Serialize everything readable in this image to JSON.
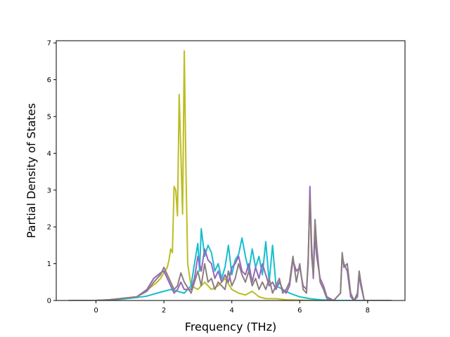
{
  "chart_data": {
    "type": "line",
    "title": "",
    "xlabel": "Frequency (THz)",
    "ylabel": "Partial Density of States",
    "xlim": [
      -1.17,
      9.1
    ],
    "ylim": [
      0,
      7.06
    ],
    "xticks": [
      0,
      2,
      4,
      6,
      8
    ],
    "yticks": [
      0,
      1,
      2,
      3,
      4,
      5,
      6,
      7
    ],
    "grid": false,
    "legend": "none",
    "series": [
      {
        "color": "#bcbd22",
        "points": [
          [
            -0.8,
            0
          ],
          [
            0,
            0
          ],
          [
            0.3,
            0.01
          ],
          [
            0.6,
            0.04
          ],
          [
            0.8,
            0.06
          ],
          [
            1.0,
            0.08
          ],
          [
            1.2,
            0.1
          ],
          [
            1.4,
            0.2
          ],
          [
            1.6,
            0.35
          ],
          [
            1.8,
            0.5
          ],
          [
            1.9,
            0.6
          ],
          [
            2.0,
            0.75
          ],
          [
            2.1,
            0.9
          ],
          [
            2.15,
            1.1
          ],
          [
            2.2,
            1.4
          ],
          [
            2.25,
            1.3
          ],
          [
            2.3,
            3.1
          ],
          [
            2.35,
            3.0
          ],
          [
            2.4,
            2.3
          ],
          [
            2.45,
            5.6
          ],
          [
            2.5,
            4.0
          ],
          [
            2.55,
            2.35
          ],
          [
            2.6,
            6.78
          ],
          [
            2.65,
            3.5
          ],
          [
            2.7,
            1.0
          ],
          [
            2.8,
            0.4
          ],
          [
            3.0,
            0.3
          ],
          [
            3.2,
            0.5
          ],
          [
            3.4,
            0.3
          ],
          [
            3.6,
            0.4
          ],
          [
            3.8,
            0.6
          ],
          [
            4.0,
            0.3
          ],
          [
            4.2,
            0.2
          ],
          [
            4.4,
            0.15
          ],
          [
            4.6,
            0.25
          ],
          [
            4.8,
            0.1
          ],
          [
            5.0,
            0.05
          ],
          [
            5.3,
            0.05
          ],
          [
            5.6,
            0.02
          ],
          [
            6.0,
            0.01
          ],
          [
            6.5,
            0
          ],
          [
            8.7,
            0
          ]
        ]
      },
      {
        "color": "#17becf",
        "points": [
          [
            -0.8,
            0
          ],
          [
            0,
            0
          ],
          [
            0.4,
            0.01
          ],
          [
            0.8,
            0.04
          ],
          [
            1.2,
            0.08
          ],
          [
            1.5,
            0.12
          ],
          [
            1.8,
            0.2
          ],
          [
            2.0,
            0.25
          ],
          [
            2.2,
            0.3
          ],
          [
            2.4,
            0.25
          ],
          [
            2.6,
            0.2
          ],
          [
            2.8,
            0.4
          ],
          [
            2.9,
            1.0
          ],
          [
            3.0,
            1.55
          ],
          [
            3.05,
            0.8
          ],
          [
            3.1,
            1.95
          ],
          [
            3.2,
            1.2
          ],
          [
            3.3,
            1.5
          ],
          [
            3.4,
            1.3
          ],
          [
            3.5,
            0.8
          ],
          [
            3.6,
            1.0
          ],
          [
            3.7,
            0.6
          ],
          [
            3.8,
            0.9
          ],
          [
            3.9,
            1.5
          ],
          [
            4.0,
            0.7
          ],
          [
            4.1,
            1.1
          ],
          [
            4.2,
            1.25
          ],
          [
            4.3,
            1.7
          ],
          [
            4.4,
            1.2
          ],
          [
            4.5,
            0.8
          ],
          [
            4.6,
            1.4
          ],
          [
            4.7,
            0.9
          ],
          [
            4.8,
            1.2
          ],
          [
            4.9,
            0.7
          ],
          [
            5.0,
            1.6
          ],
          [
            5.1,
            0.5
          ],
          [
            5.2,
            1.5
          ],
          [
            5.3,
            0.4
          ],
          [
            5.5,
            0.3
          ],
          [
            5.7,
            0.2
          ],
          [
            6.0,
            0.1
          ],
          [
            6.3,
            0.05
          ],
          [
            6.6,
            0.02
          ],
          [
            7.0,
            0
          ],
          [
            8.7,
            0
          ]
        ]
      },
      {
        "color": "#9467bd",
        "points": [
          [
            -0.8,
            0
          ],
          [
            0,
            0
          ],
          [
            0.4,
            0.02
          ],
          [
            0.8,
            0.06
          ],
          [
            1.2,
            0.1
          ],
          [
            1.5,
            0.3
          ],
          [
            1.7,
            0.6
          ],
          [
            1.9,
            0.75
          ],
          [
            2.0,
            0.8
          ],
          [
            2.1,
            0.6
          ],
          [
            2.2,
            0.4
          ],
          [
            2.3,
            0.2
          ],
          [
            2.4,
            0.3
          ],
          [
            2.5,
            0.5
          ],
          [
            2.6,
            0.3
          ],
          [
            2.8,
            0.3
          ],
          [
            2.9,
            0.6
          ],
          [
            3.0,
            1.2
          ],
          [
            3.1,
            0.8
          ],
          [
            3.2,
            1.4
          ],
          [
            3.3,
            1.1
          ],
          [
            3.4,
            1.0
          ],
          [
            3.5,
            0.6
          ],
          [
            3.6,
            0.8
          ],
          [
            3.7,
            0.5
          ],
          [
            3.8,
            0.7
          ],
          [
            3.9,
            0.5
          ],
          [
            4.0,
            0.9
          ],
          [
            4.1,
            1.0
          ],
          [
            4.2,
            1.2
          ],
          [
            4.3,
            0.8
          ],
          [
            4.4,
            0.7
          ],
          [
            4.5,
            1.0
          ],
          [
            4.6,
            0.5
          ],
          [
            4.7,
            0.9
          ],
          [
            4.8,
            0.6
          ],
          [
            4.9,
            1.0
          ],
          [
            5.0,
            0.7
          ],
          [
            5.1,
            0.4
          ],
          [
            5.2,
            0.5
          ],
          [
            5.3,
            0.3
          ],
          [
            5.4,
            0.5
          ],
          [
            5.5,
            0.3
          ],
          [
            5.6,
            0.2
          ],
          [
            5.7,
            0.4
          ],
          [
            5.8,
            1.1
          ],
          [
            5.9,
            0.8
          ],
          [
            6.0,
            0.9
          ],
          [
            6.1,
            0.4
          ],
          [
            6.2,
            0.3
          ],
          [
            6.25,
            1.0
          ],
          [
            6.3,
            3.1
          ],
          [
            6.35,
            1.5
          ],
          [
            6.4,
            0.6
          ],
          [
            6.45,
            1.8
          ],
          [
            6.5,
            1.2
          ],
          [
            6.6,
            0.6
          ],
          [
            6.7,
            0.4
          ],
          [
            6.8,
            0.1
          ],
          [
            7.0,
            0
          ],
          [
            7.2,
            0.2
          ],
          [
            7.25,
            1.2
          ],
          [
            7.3,
            1.0
          ],
          [
            7.4,
            0.8
          ],
          [
            7.5,
            0.1
          ],
          [
            7.6,
            0
          ],
          [
            7.7,
            0.1
          ],
          [
            7.75,
            0.7
          ],
          [
            7.8,
            0.4
          ],
          [
            7.9,
            0
          ],
          [
            8.7,
            0
          ]
        ]
      },
      {
        "color": "#8c7e7e",
        "points": [
          [
            -0.8,
            0
          ],
          [
            0,
            0
          ],
          [
            0.4,
            0.02
          ],
          [
            0.8,
            0.06
          ],
          [
            1.2,
            0.1
          ],
          [
            1.5,
            0.25
          ],
          [
            1.7,
            0.5
          ],
          [
            1.9,
            0.7
          ],
          [
            2.0,
            0.9
          ],
          [
            2.1,
            0.7
          ],
          [
            2.2,
            0.5
          ],
          [
            2.3,
            0.3
          ],
          [
            2.4,
            0.4
          ],
          [
            2.5,
            0.75
          ],
          [
            2.6,
            0.5
          ],
          [
            2.8,
            0.2
          ],
          [
            2.9,
            0.5
          ],
          [
            3.0,
            0.8
          ],
          [
            3.1,
            0.4
          ],
          [
            3.2,
            1.0
          ],
          [
            3.3,
            0.5
          ],
          [
            3.4,
            0.6
          ],
          [
            3.5,
            0.3
          ],
          [
            3.6,
            0.5
          ],
          [
            3.7,
            0.4
          ],
          [
            3.8,
            0.3
          ],
          [
            3.9,
            0.8
          ],
          [
            4.0,
            0.4
          ],
          [
            4.1,
            0.6
          ],
          [
            4.2,
            1.0
          ],
          [
            4.3,
            0.7
          ],
          [
            4.4,
            0.5
          ],
          [
            4.5,
            0.8
          ],
          [
            4.6,
            0.4
          ],
          [
            4.7,
            0.6
          ],
          [
            4.8,
            0.3
          ],
          [
            4.9,
            0.5
          ],
          [
            5.0,
            0.3
          ],
          [
            5.1,
            0.6
          ],
          [
            5.2,
            0.2
          ],
          [
            5.3,
            0.4
          ],
          [
            5.4,
            0.6
          ],
          [
            5.5,
            0.2
          ],
          [
            5.6,
            0.3
          ],
          [
            5.7,
            0.5
          ],
          [
            5.8,
            1.2
          ],
          [
            5.9,
            0.5
          ],
          [
            6.0,
            1.0
          ],
          [
            6.1,
            0.3
          ],
          [
            6.2,
            0.2
          ],
          [
            6.25,
            1.2
          ],
          [
            6.3,
            2.8
          ],
          [
            6.35,
            1.2
          ],
          [
            6.4,
            0.7
          ],
          [
            6.45,
            2.2
          ],
          [
            6.5,
            1.5
          ],
          [
            6.6,
            0.5
          ],
          [
            6.7,
            0.3
          ],
          [
            6.8,
            0.05
          ],
          [
            7.0,
            0
          ],
          [
            7.2,
            0.2
          ],
          [
            7.25,
            1.3
          ],
          [
            7.3,
            0.9
          ],
          [
            7.4,
            1.0
          ],
          [
            7.5,
            0.2
          ],
          [
            7.6,
            0
          ],
          [
            7.7,
            0.2
          ],
          [
            7.75,
            0.8
          ],
          [
            7.8,
            0.5
          ],
          [
            7.9,
            0
          ],
          [
            8.7,
            0
          ]
        ]
      }
    ]
  }
}
